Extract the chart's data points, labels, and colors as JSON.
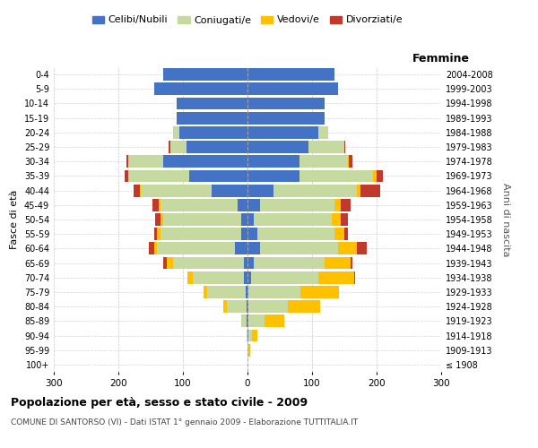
{
  "age_groups": [
    "100+",
    "95-99",
    "90-94",
    "85-89",
    "80-84",
    "75-79",
    "70-74",
    "65-69",
    "60-64",
    "55-59",
    "50-54",
    "45-49",
    "40-44",
    "35-39",
    "30-34",
    "25-29",
    "20-24",
    "15-19",
    "10-14",
    "5-9",
    "0-4"
  ],
  "birth_years": [
    "≤ 1908",
    "1909-1913",
    "1914-1918",
    "1919-1923",
    "1924-1928",
    "1929-1933",
    "1934-1938",
    "1939-1943",
    "1944-1948",
    "1949-1953",
    "1954-1958",
    "1959-1963",
    "1964-1968",
    "1969-1973",
    "1974-1978",
    "1979-1983",
    "1984-1988",
    "1989-1993",
    "1994-1998",
    "1999-2003",
    "2004-2008"
  ],
  "males": {
    "celibi": [
      0,
      0,
      0,
      2,
      2,
      3,
      5,
      5,
      20,
      10,
      10,
      15,
      55,
      90,
      130,
      95,
      105,
      110,
      110,
      145,
      130
    ],
    "coniugati": [
      0,
      0,
      2,
      8,
      30,
      60,
      80,
      110,
      120,
      125,
      120,
      120,
      110,
      95,
      55,
      25,
      10,
      0,
      0,
      0,
      0
    ],
    "vedovi": [
      0,
      0,
      0,
      0,
      5,
      5,
      8,
      10,
      5,
      5,
      5,
      2,
      2,
      0,
      0,
      0,
      0,
      0,
      0,
      0,
      0
    ],
    "divorziati": [
      0,
      0,
      0,
      0,
      0,
      0,
      0,
      5,
      8,
      5,
      8,
      10,
      10,
      5,
      2,
      2,
      0,
      0,
      0,
      0,
      0
    ]
  },
  "females": {
    "nubili": [
      0,
      0,
      2,
      2,
      2,
      2,
      5,
      10,
      20,
      15,
      10,
      20,
      40,
      80,
      80,
      95,
      110,
      120,
      120,
      140,
      135
    ],
    "coniugate": [
      0,
      2,
      5,
      25,
      60,
      80,
      105,
      110,
      120,
      120,
      120,
      115,
      130,
      115,
      75,
      55,
      15,
      0,
      0,
      0,
      0
    ],
    "vedove": [
      0,
      2,
      8,
      30,
      50,
      60,
      55,
      40,
      30,
      15,
      15,
      10,
      5,
      5,
      2,
      0,
      0,
      0,
      0,
      0,
      0
    ],
    "divorziate": [
      0,
      0,
      0,
      0,
      0,
      0,
      2,
      2,
      15,
      5,
      10,
      15,
      30,
      10,
      5,
      2,
      0,
      0,
      0,
      0,
      0
    ]
  },
  "colors": {
    "celibi": "#4472c4",
    "coniugati": "#c5d9a0",
    "vedovi": "#ffc000",
    "divorziati": "#c0392b"
  },
  "xlim": 300,
  "title": "Popolazione per età, sesso e stato civile - 2009",
  "subtitle": "COMUNE DI SANTORSO (VI) - Dati ISTAT 1° gennaio 2009 - Elaborazione TUTTITALIA.IT",
  "ylabel_left": "Fasce di età",
  "ylabel_right": "Anni di nascita",
  "xlabel_right": "Femmine",
  "legend_labels": [
    "Celibi/Nubili",
    "Coniugati/e",
    "Vedovi/e",
    "Divorziati/e"
  ],
  "bg_color": "#ffffff",
  "grid_color": "#bbbbbb"
}
